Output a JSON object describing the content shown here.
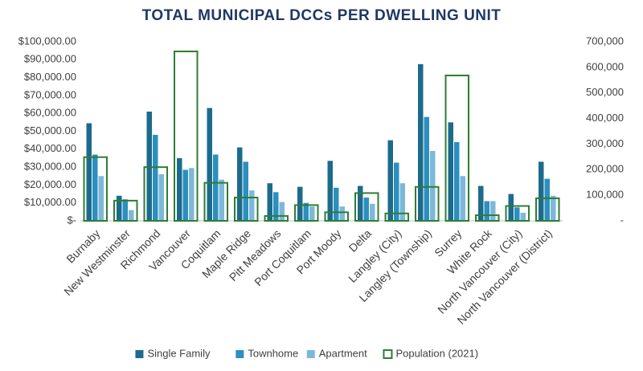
{
  "chart_data": {
    "type": "bar",
    "title": "TOTAL MUNICIPAL DCCs PER DWELLING UNIT",
    "categories": [
      "Burnaby",
      "New Westminster",
      "Richmond",
      "Vancouver",
      "Coquitlam",
      "Maple Ridge",
      "Pitt Meadows",
      "Port Coquitlam",
      "Port Moody",
      "Delta",
      "Langley (City)",
      "Langley (Township)",
      "Surrey",
      "White Rock",
      "North Vancouver (City)",
      "North Vancouver (District)"
    ],
    "series": [
      {
        "name": "Single Family",
        "color": "#1c6b8c",
        "values": [
          54500,
          14000,
          61000,
          35000,
          63000,
          41000,
          21000,
          19000,
          33500,
          19500,
          45000,
          87500,
          55000,
          19500,
          15000,
          33000
        ]
      },
      {
        "name": "Townhome",
        "color": "#2b8fbf",
        "values": [
          37000,
          12000,
          48000,
          28500,
          37000,
          33000,
          16000,
          10000,
          18500,
          13000,
          32500,
          58000,
          44000,
          11000,
          7500,
          23500
        ]
      },
      {
        "name": "Apartment",
        "color": "#7db8d8",
        "values": [
          25000,
          6000,
          26000,
          29500,
          23000,
          17000,
          10500,
          8000,
          8000,
          9500,
          21000,
          39000,
          25000,
          11000,
          4500,
          14000
        ]
      },
      {
        "name": "Population (2021)",
        "color": "#2e7d32",
        "axis": "y2",
        "values": [
          249000,
          78900,
          209900,
          662200,
          148600,
          90990,
          19100,
          61500,
          33500,
          108500,
          28960,
          132600,
          568300,
          21900,
          58100,
          88200
        ]
      }
    ],
    "ylim": [
      0,
      100000
    ],
    "yticks": [
      {
        "value": 0,
        "label": "$-"
      },
      {
        "value": 10000,
        "label": "$10,000.00"
      },
      {
        "value": 20000,
        "label": "$20,000.00"
      },
      {
        "value": 30000,
        "label": "$30,000.00"
      },
      {
        "value": 40000,
        "label": "$40,000.00"
      },
      {
        "value": 50000,
        "label": "$50,000.00"
      },
      {
        "value": 60000,
        "label": "$60,000.00"
      },
      {
        "value": 70000,
        "label": "$70,000.00"
      },
      {
        "value": 80000,
        "label": "$80,000.00"
      },
      {
        "value": 90000,
        "label": "$90,000.00"
      },
      {
        "value": 100000,
        "label": "$100,000.00"
      }
    ],
    "y2lim": [
      0,
      700000
    ],
    "y2ticks": [
      {
        "value": 0,
        "label": "-"
      },
      {
        "value": 100000,
        "label": "100,000"
      },
      {
        "value": 200000,
        "label": "200,000"
      },
      {
        "value": 300000,
        "label": "300,000"
      },
      {
        "value": 400000,
        "label": "400,000"
      },
      {
        "value": 500000,
        "label": "500,000"
      },
      {
        "value": 600000,
        "label": "600,000"
      },
      {
        "value": 700000,
        "label": "700,000"
      }
    ],
    "legend": "bottom"
  }
}
